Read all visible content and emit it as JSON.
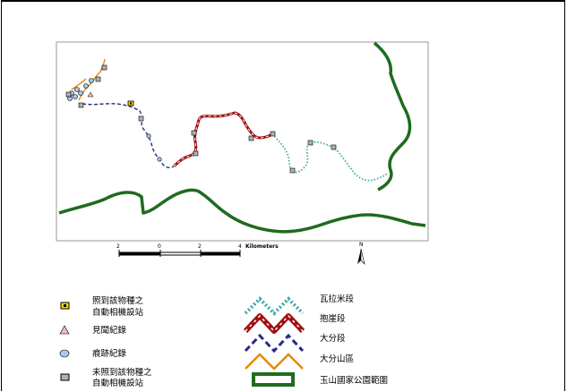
{
  "colors": {
    "park_boundary": "#1f6b1f",
    "walaimi_trail": "#3aa8a8",
    "baoya_trail": "#a01010",
    "dafen_trail": "#2a2a8a",
    "dafen_mountain_trail": "#e68a00",
    "camera_station_detected": "#e8d800",
    "sighting_marker": "#f2b3cf",
    "trace_marker": "#a8c8f0",
    "camera_station_not_detected": "#b0b0b0"
  },
  "scale_bar": {
    "tick_labels": [
      "2",
      "0",
      "2",
      "4"
    ],
    "unit_label": "Kilometers"
  },
  "north_arrow": {
    "label": "N"
  },
  "legend_points": [
    {
      "icon": "camera-detected",
      "line1": "照到該物種之",
      "line2": "自動相機設站"
    },
    {
      "icon": "sighting-triangle",
      "line1": "見聞紀錄",
      "line2": ""
    },
    {
      "icon": "trace-circle",
      "line1": "痕跡紀錄",
      "line2": ""
    },
    {
      "icon": "camera-not-detected",
      "line1": "未照到該物種之",
      "line2": "自動相機設站"
    }
  ],
  "legend_lines": [
    {
      "icon": "walaimi-trail-line",
      "label": "瓦拉米段"
    },
    {
      "icon": "baoya-trail-line",
      "label": "抱崖段"
    },
    {
      "icon": "dafen-trail-line",
      "label": "大分段"
    },
    {
      "icon": "dafen-mountain-trail-line",
      "label": "大分山區"
    },
    {
      "icon": "park-boundary-rect",
      "label": "玉山國家公園範圍"
    }
  ]
}
